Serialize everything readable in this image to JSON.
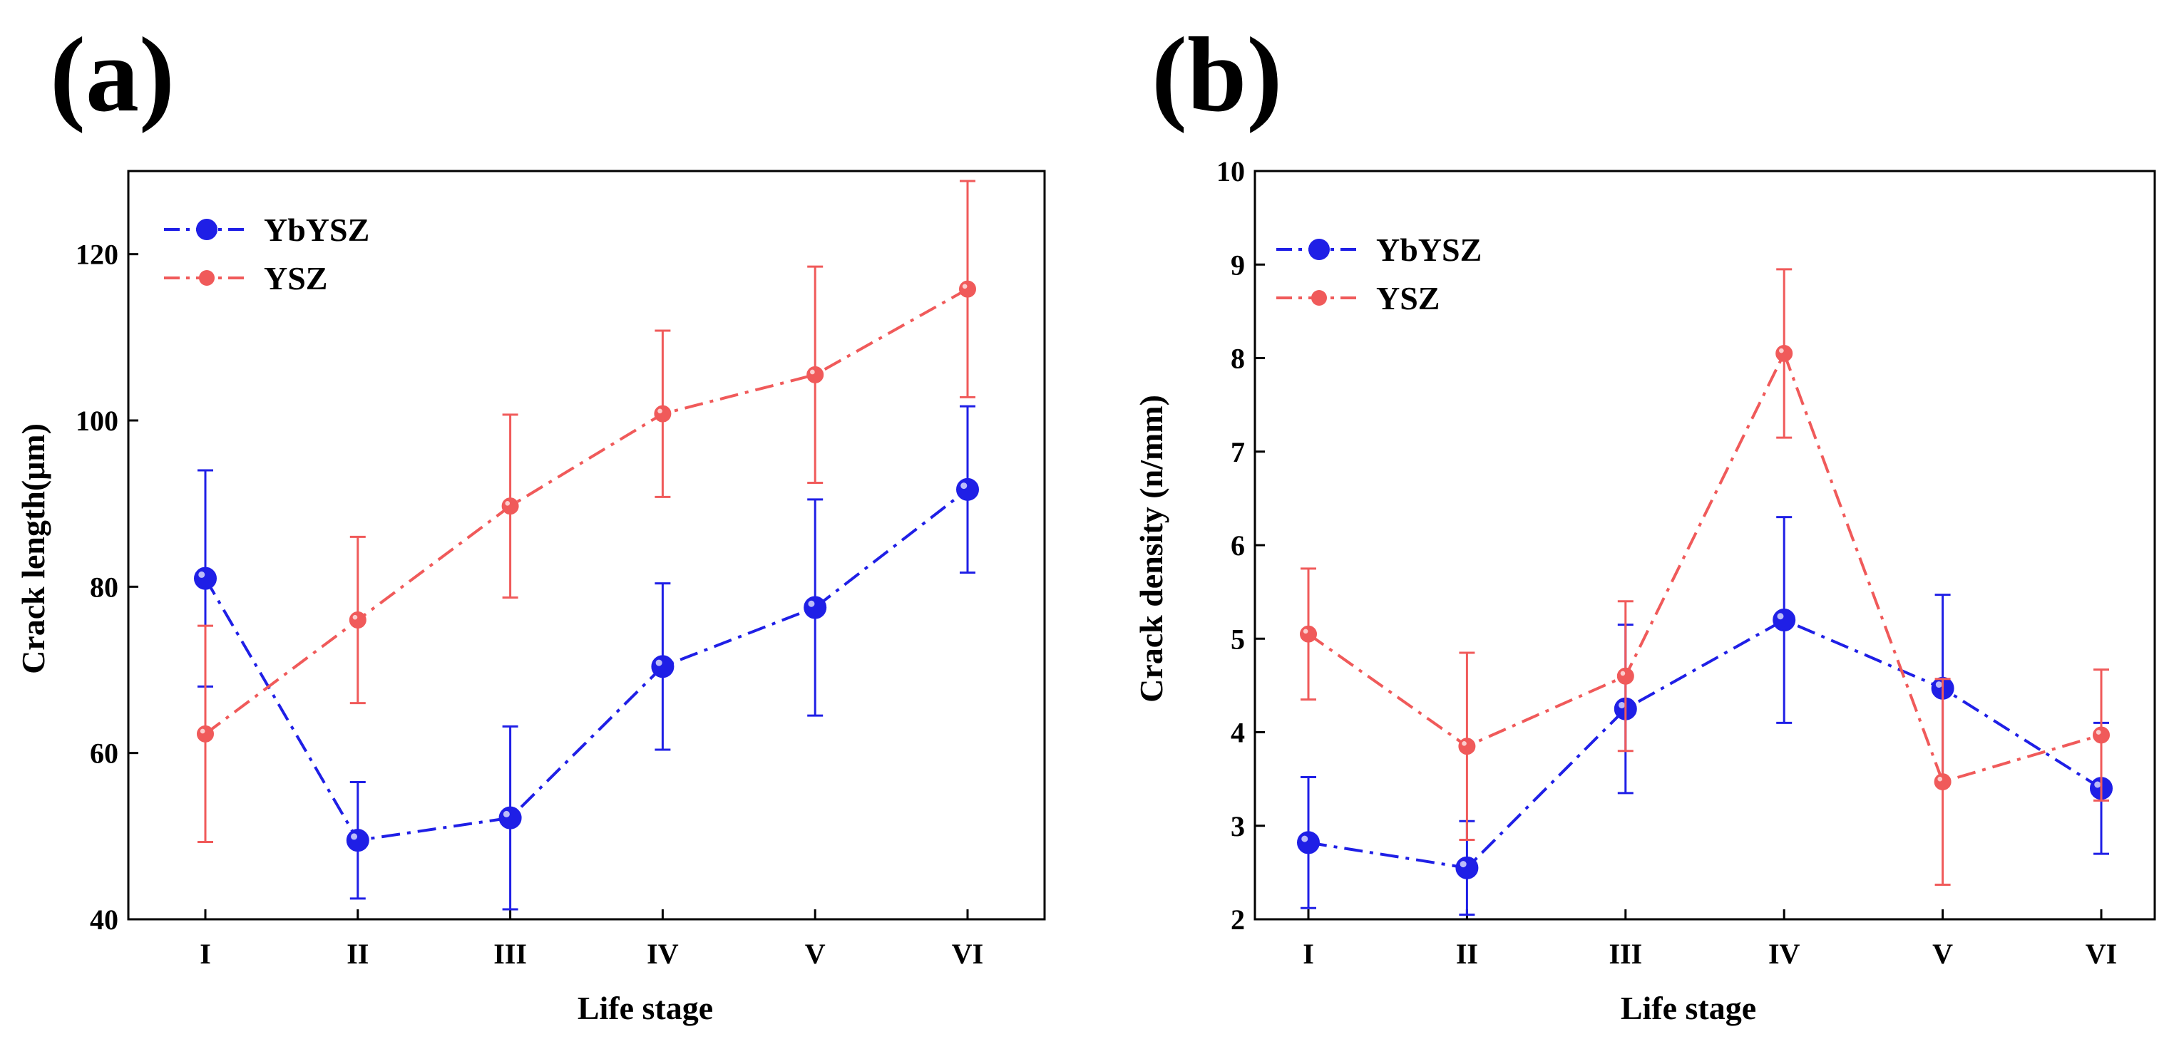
{
  "colors": {
    "ybysz": "#1f1fe6",
    "ysz": "#f05a5a",
    "axis": "#000000"
  },
  "chart_data": [
    {
      "panel_label": "(a)",
      "type": "line",
      "xlabel": "Life stage",
      "ylabel": "Crack length(μm)",
      "categories": [
        "I",
        "II",
        "III",
        "IV",
        "V",
        "VI"
      ],
      "ylim": [
        40,
        130
      ],
      "yticks": [
        40,
        60,
        80,
        100,
        120
      ],
      "legend_position": "top-left",
      "series": [
        {
          "name": "YbYSZ",
          "values": [
            81.0,
            49.5,
            52.2,
            70.4,
            77.5,
            91.7
          ],
          "errors": [
            13.0,
            7.0,
            11.0,
            10.0,
            13.0,
            10.0
          ],
          "color_key": "ybysz"
        },
        {
          "name": "YSZ",
          "values": [
            62.3,
            76.0,
            89.7,
            100.8,
            105.5,
            115.8
          ],
          "errors": [
            13.0,
            10.0,
            11.0,
            10.0,
            13.0,
            13.0
          ],
          "color_key": "ysz"
        }
      ]
    },
    {
      "panel_label": "(b)",
      "type": "line",
      "xlabel": "Life stage",
      "ylabel": "Crack density (n/mm)",
      "categories": [
        "I",
        "II",
        "III",
        "IV",
        "V",
        "VI"
      ],
      "ylim": [
        2,
        10
      ],
      "yticks": [
        2,
        3,
        4,
        5,
        6,
        7,
        8,
        9,
        10
      ],
      "legend_position": "top-left",
      "series": [
        {
          "name": "YbYSZ",
          "values": [
            2.82,
            2.55,
            4.25,
            5.2,
            4.47,
            3.4
          ],
          "errors": [
            0.7,
            0.5,
            0.9,
            1.1,
            1.0,
            0.7
          ],
          "color_key": "ybysz"
        },
        {
          "name": "YSZ",
          "values": [
            5.05,
            3.85,
            4.6,
            8.05,
            3.47,
            3.97
          ],
          "errors": [
            0.7,
            1.0,
            0.8,
            0.9,
            1.1,
            0.7
          ],
          "color_key": "ysz"
        }
      ]
    }
  ]
}
